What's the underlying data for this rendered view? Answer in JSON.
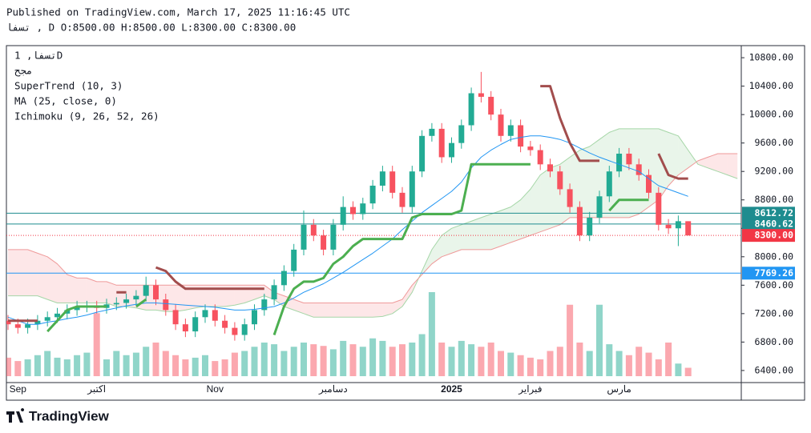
{
  "chart_data": {
    "type": "candlestick",
    "header": {
      "published": "Published on TradingView.com, March 17, 2025 11:16:45 UTC",
      "symbol_line": "تسفا , D O:8500.00 H:8500.00 L:8300.00 C:8300.00"
    },
    "legend": [
      "تسفا, 1D",
      "مجح",
      "SuperTrend (10, 3)",
      "MA (25, close, 0)",
      "Ichimoku (9, 26, 52, 26)"
    ],
    "brand": "TradingView",
    "categories": [
      null,
      "Sep",
      null,
      null,
      null,
      null,
      null,
      null,
      null,
      "اكتبر",
      null,
      null,
      null,
      null,
      null,
      null,
      null,
      null,
      null,
      null,
      null,
      "Nov",
      null,
      null,
      null,
      null,
      null,
      null,
      null,
      null,
      null,
      null,
      null,
      "دسامبر",
      null,
      null,
      null,
      null,
      null,
      null,
      null,
      null,
      null,
      null,
      null,
      "2025",
      null,
      null,
      null,
      null,
      null,
      null,
      null,
      "فبراير",
      null,
      null,
      null,
      null,
      null,
      null,
      null,
      null,
      "مارس",
      null,
      null,
      null,
      null,
      null,
      null,
      null
    ],
    "open": [
      7100,
      7050,
      7000,
      7050,
      7100,
      7150,
      7200,
      7250,
      7300,
      7300,
      7280,
      7330,
      7350,
      7400,
      7450,
      7600,
      7400,
      7250,
      7050,
      6950,
      7150,
      7250,
      7100,
      7000,
      6900,
      7050,
      7250,
      7400,
      7600,
      7800,
      8100,
      8450,
      8300,
      8100,
      8450,
      8700,
      8600,
      8750,
      9000,
      9200,
      8900,
      8700,
      9200,
      9700,
      9800,
      9400,
      9600,
      9850,
      10300,
      10250,
      10000,
      9700,
      9850,
      9550,
      9500,
      9300,
      9200,
      8950,
      8700,
      8300,
      8550,
      8850,
      9200,
      9450,
      9300,
      9150,
      8900,
      8450,
      8400,
      8500
    ],
    "high": [
      7180,
      7130,
      7130,
      7180,
      7230,
      7280,
      7330,
      7380,
      7380,
      7380,
      7410,
      7430,
      7480,
      7530,
      7720,
      7680,
      7480,
      7330,
      7130,
      7230,
      7330,
      7330,
      7180,
      7080,
      7130,
      7330,
      7480,
      7680,
      7880,
      8180,
      8650,
      8530,
      8380,
      8530,
      8850,
      8780,
      8830,
      9080,
      9280,
      9280,
      8980,
      9280,
      9780,
      9880,
      9880,
      9680,
      9930,
      10380,
      10600,
      10330,
      10080,
      9930,
      9930,
      9630,
      9580,
      9380,
      9280,
      9030,
      8780,
      8630,
      8930,
      9280,
      9530,
      9530,
      9380,
      9230,
      8980,
      8530,
      8580,
      8500
    ],
    "low": [
      6970,
      6920,
      6920,
      6970,
      7020,
      7070,
      7120,
      7170,
      7220,
      7200,
      7200,
      7250,
      7270,
      7320,
      7370,
      7320,
      7170,
      6970,
      6870,
      6870,
      7070,
      7020,
      6920,
      6820,
      6820,
      6970,
      7170,
      7320,
      7520,
      7720,
      8020,
      8220,
      8020,
      8020,
      8370,
      8520,
      8520,
      8670,
      8920,
      8820,
      8620,
      8620,
      9120,
      9620,
      9320,
      9320,
      9520,
      9770,
      10170,
      9920,
      9620,
      9620,
      9470,
      9420,
      9220,
      9120,
      8870,
      8620,
      8220,
      8220,
      8470,
      8770,
      9120,
      9220,
      9070,
      8820,
      8370,
      8320,
      8150,
      8300
    ],
    "close": [
      7050,
      7000,
      7050,
      7100,
      7150,
      7200,
      7250,
      7300,
      7300,
      7280,
      7330,
      7350,
      7400,
      7450,
      7600,
      7400,
      7250,
      7050,
      6950,
      7150,
      7250,
      7100,
      7000,
      6900,
      7050,
      7250,
      7400,
      7600,
      7800,
      8100,
      8450,
      8300,
      8100,
      8450,
      8700,
      8600,
      8750,
      9000,
      9200,
      8900,
      8700,
      9200,
      9700,
      9800,
      9400,
      9600,
      9850,
      10300,
      10250,
      10000,
      9700,
      9850,
      9550,
      9500,
      9300,
      9200,
      8950,
      8700,
      8300,
      8550,
      8850,
      9200,
      9450,
      9300,
      9150,
      8900,
      8450,
      8400,
      8500,
      8300
    ],
    "volume": [
      22,
      18,
      20,
      25,
      30,
      22,
      20,
      25,
      28,
      75,
      20,
      30,
      25,
      28,
      35,
      40,
      30,
      25,
      20,
      22,
      25,
      18,
      20,
      28,
      30,
      35,
      40,
      38,
      30,
      35,
      40,
      38,
      36,
      32,
      42,
      38,
      35,
      45,
      42,
      35,
      38,
      40,
      50,
      100,
      40,
      35,
      42,
      38,
      35,
      40,
      30,
      28,
      25,
      22,
      20,
      30,
      35,
      85,
      40,
      30,
      85,
      38,
      30,
      25,
      35,
      28,
      20,
      40,
      15,
      10
    ],
    "colors": {
      "up": "#22ab94",
      "down": "#f7525f"
    },
    "ylim": [
      6230,
      10970
    ],
    "yticks": [
      {
        "value": 6400,
        "label": "6400.00"
      },
      {
        "value": 6800,
        "label": "6800.00"
      },
      {
        "value": 7200,
        "label": "7200.00"
      },
      {
        "value": 7600,
        "label": "7600.00"
      },
      {
        "value": 8000,
        "label": "8000.00"
      },
      {
        "value": 8400,
        "label": "8400.00"
      },
      {
        "value": 8800,
        "label": "8800.00"
      },
      {
        "value": 9200,
        "label": "9200.00"
      },
      {
        "value": 9600,
        "label": "9600.00"
      },
      {
        "value": 10000,
        "label": "10000.00"
      },
      {
        "value": 10400,
        "label": "10400.00"
      },
      {
        "value": 10800,
        "label": "10800.00"
      }
    ],
    "price_lines": [
      {
        "value": 8612.72,
        "color": "#1e8c8f"
      },
      {
        "value": 8460.62,
        "color": "#1e8c8f"
      },
      {
        "value": 8300,
        "label": "8300.00",
        "color": "#f23645"
      },
      {
        "value": 7769.26,
        "color": "#2196f3"
      }
    ],
    "indicators": {
      "supertrend": {
        "up_color": "#4caf50",
        "down_color": "#a24d4d",
        "up": [
          null,
          null,
          null,
          null,
          6950,
          7100,
          7250,
          7300,
          7300,
          7300,
          7300,
          null,
          null,
          7300,
          7400,
          null,
          null,
          null,
          null,
          null,
          null,
          null,
          null,
          null,
          null,
          null,
          null,
          6900,
          7300,
          7550,
          7650,
          7650,
          7700,
          7900,
          8000,
          8150,
          8250,
          8250,
          8250,
          8250,
          8250,
          8550,
          8600,
          8600,
          8600,
          8600,
          8650,
          9300,
          9300,
          9300,
          9300,
          9300,
          9300,
          9300,
          null,
          null,
          null,
          null,
          null,
          null,
          null,
          8650,
          8800,
          8800,
          8800,
          8800,
          null,
          null,
          null,
          null
        ],
        "down": [
          7100,
          7100,
          7100,
          7100,
          null,
          null,
          null,
          null,
          null,
          null,
          null,
          7500,
          7500,
          null,
          null,
          7850,
          7800,
          7650,
          7550,
          7550,
          7550,
          7550,
          7550,
          7550,
          7550,
          7550,
          7550,
          null,
          null,
          null,
          null,
          null,
          null,
          null,
          null,
          null,
          null,
          null,
          null,
          null,
          null,
          null,
          null,
          null,
          null,
          null,
          null,
          null,
          null,
          null,
          null,
          null,
          null,
          null,
          10400,
          10400,
          9950,
          9600,
          9350,
          9350,
          9350,
          null,
          null,
          null,
          null,
          null,
          9450,
          9150,
          9100,
          9100
        ]
      },
      "ma": {
        "color": "#2196f3",
        "values": [
          7150,
          7100,
          7050,
          7050,
          7080,
          7100,
          7130,
          7150,
          7180,
          7220,
          7250,
          7280,
          7310,
          7330,
          7350,
          7350,
          7340,
          7330,
          7320,
          7310,
          7300,
          7290,
          7270,
          7250,
          7250,
          7260,
          7280,
          7300,
          7350,
          7420,
          7500,
          7560,
          7620,
          7700,
          7780,
          7870,
          7960,
          8050,
          8150,
          8250,
          8380,
          8500,
          8620,
          8720,
          8820,
          8920,
          9050,
          9250,
          9400,
          9500,
          9580,
          9650,
          9680,
          9700,
          9700,
          9680,
          9650,
          9600,
          9530,
          9460,
          9400,
          9350,
          9300,
          9250,
          9200,
          9100,
          9000,
          8950,
          8900,
          8850
        ]
      },
      "ichimoku": {
        "a_color": "#a5d6a7",
        "b_color": "#ef9a9a",
        "span_a": [
          7450,
          7450,
          7450,
          7450,
          7400,
          7350,
          7350,
          7350,
          7350,
          7350,
          7350,
          7300,
          7300,
          7280,
          7250,
          7250,
          7230,
          7230,
          7250,
          7280,
          7300,
          7300,
          7300,
          7320,
          7350,
          7400,
          7450,
          7400,
          7300,
          7250,
          7200,
          7150,
          7150,
          7150,
          7150,
          7150,
          7150,
          7150,
          7160,
          7200,
          7300,
          7500,
          7800,
          8100,
          8300,
          8400,
          8450,
          8500,
          8550,
          8600,
          8650,
          8700,
          8800,
          8950,
          9150,
          9250,
          9300,
          9400,
          9500,
          9550,
          9650,
          9750,
          9800,
          9800,
          9800,
          9800,
          9800,
          9750,
          9700,
          9500,
          9300,
          9250,
          9200,
          9150,
          9100
        ],
        "span_b": [
          8100,
          8100,
          8100,
          8050,
          8000,
          7900,
          7750,
          7700,
          7700,
          7650,
          7650,
          7600,
          7600,
          7600,
          7600,
          7600,
          7600,
          7600,
          7600,
          7600,
          7600,
          7600,
          7600,
          7600,
          7600,
          7600,
          7600,
          7500,
          7450,
          7400,
          7350,
          7350,
          7350,
          7350,
          7350,
          7350,
          7350,
          7350,
          7350,
          7350,
          7400,
          7600,
          7750,
          7900,
          8000,
          8050,
          8100,
          8100,
          8100,
          8100,
          8150,
          8200,
          8250,
          8300,
          8350,
          8400,
          8450,
          8550,
          8550,
          8550,
          8550,
          8550,
          8550,
          8550,
          8600,
          8700,
          8800,
          9000,
          9150,
          9250,
          9350,
          9400,
          9450,
          9450,
          9450
        ]
      }
    }
  }
}
